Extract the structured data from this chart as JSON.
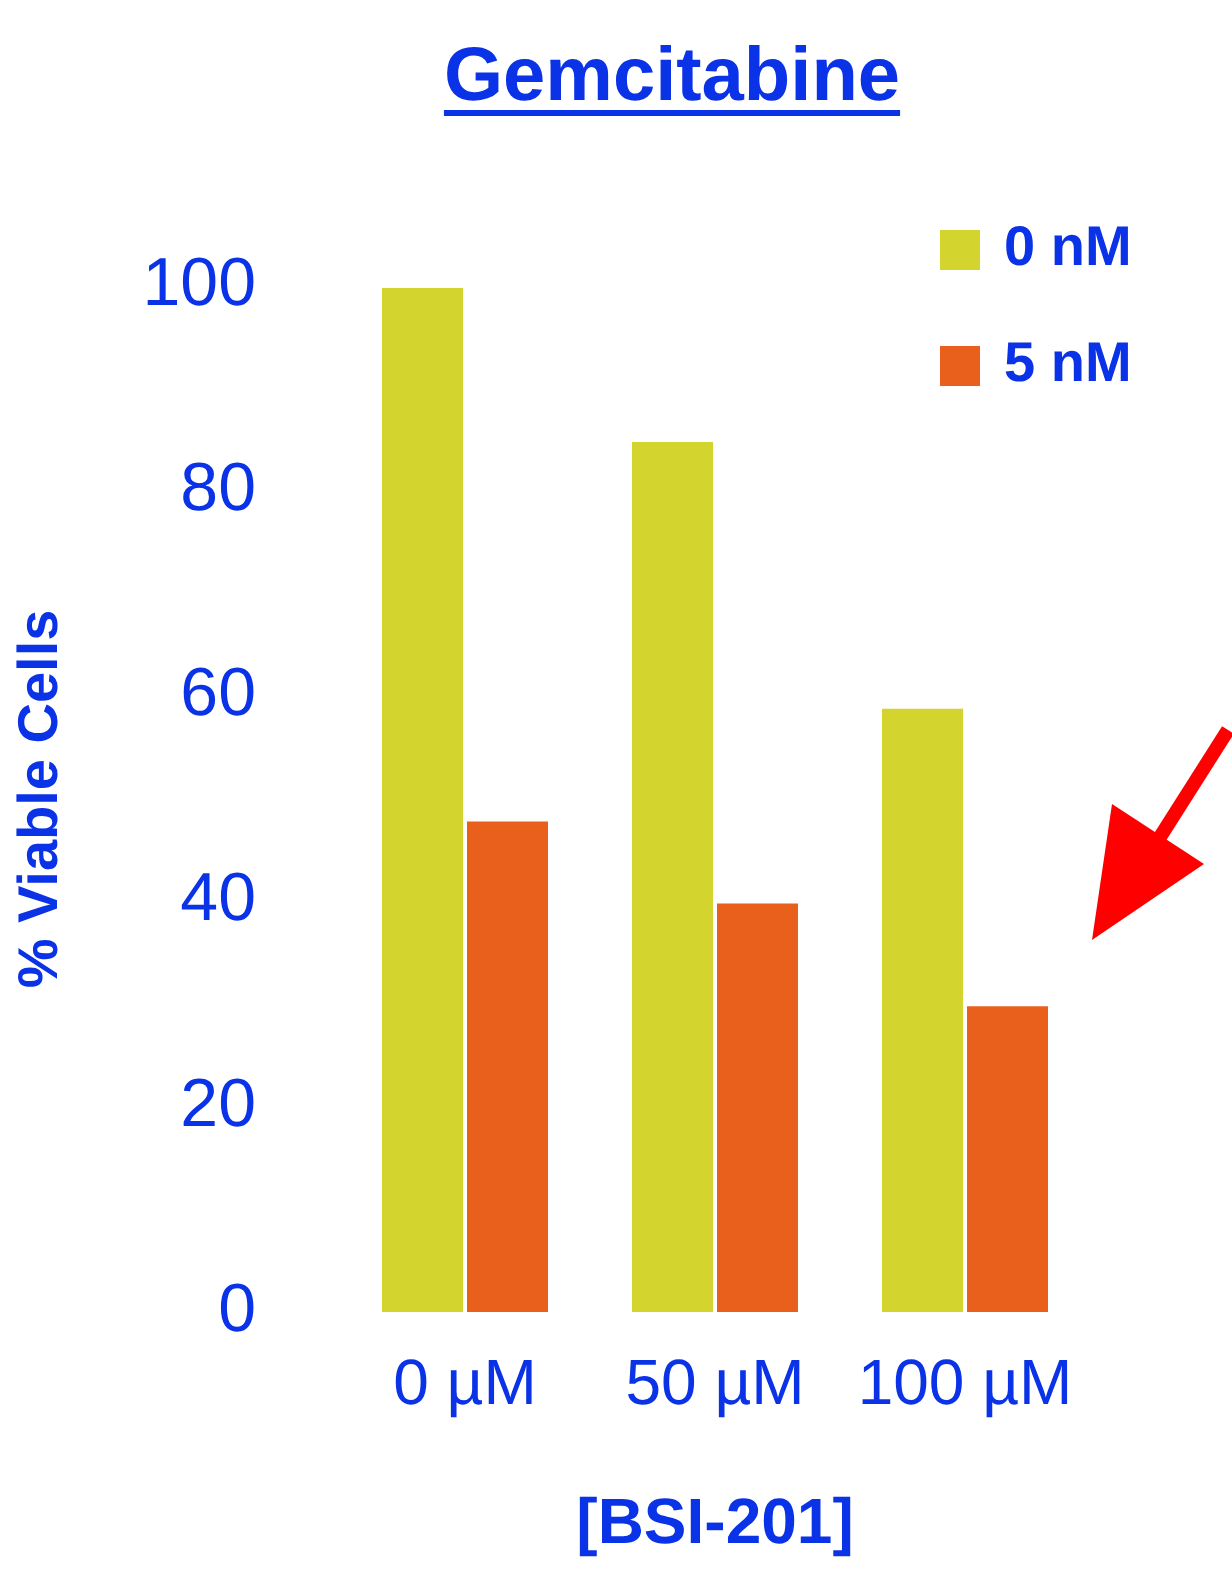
{
  "chart_data": {
    "type": "bar",
    "title": "Gemcitabine",
    "xlabel": "[BSI-201]",
    "ylabel": "% Viable Cells",
    "categories": [
      "0 µM",
      "50 µM",
      "100 µM"
    ],
    "series": [
      {
        "name": "0 nM",
        "color": "#d4d42e",
        "values": [
          100,
          85,
          59
        ]
      },
      {
        "name": "5 nM",
        "color": "#e8601c",
        "values": [
          48,
          40,
          30
        ]
      }
    ],
    "ylim": [
      0,
      100
    ],
    "yticks": [
      0,
      20,
      40,
      60,
      80,
      100
    ],
    "grid": false,
    "legend": "top right"
  }
}
